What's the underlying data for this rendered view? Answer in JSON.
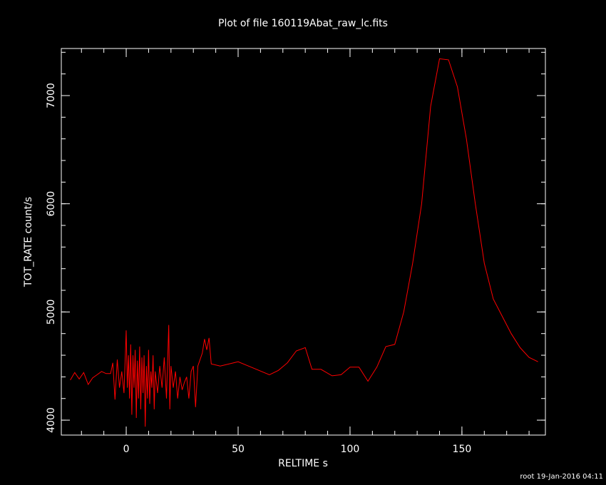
{
  "chart_data": {
    "type": "line",
    "title": "Plot of file 160119Abat_raw_lc.fits",
    "x_label": "RELTIME  s",
    "y_label": "TOT_RATE  count/s",
    "footer": "root 19-Jan-2016 04:11",
    "color": "#ff0000",
    "xlim": [
      -29,
      187.3
    ],
    "ylim": [
      3862,
      7435
    ],
    "xticks": [
      0,
      50,
      100,
      150
    ],
    "yticks": [
      4000,
      5000,
      6000,
      7000
    ],
    "x": [
      -25,
      -23,
      -21,
      -19,
      -17,
      -15,
      -13,
      -11,
      -9,
      -7,
      -6,
      -5,
      -4,
      -3,
      -2,
      -1,
      0,
      0.5,
      1,
      1.5,
      2,
      2.5,
      3,
      3.5,
      4,
      4.5,
      5,
      5.5,
      6,
      6.5,
      7,
      7.5,
      8,
      8.5,
      9,
      9.5,
      10,
      10.5,
      11,
      11.5,
      12,
      12.5,
      13,
      14,
      15,
      16,
      17,
      18,
      19,
      19.5,
      20,
      21,
      22,
      23,
      24,
      25,
      26,
      27,
      28,
      29,
      30,
      31,
      32,
      34,
      35,
      36,
      37,
      38,
      42,
      50,
      57,
      64,
      68,
      72,
      76,
      80,
      83,
      87,
      92,
      96,
      100,
      104,
      108,
      112,
      116,
      120,
      124,
      128,
      132,
      136,
      140,
      144,
      148,
      152,
      156,
      160,
      164,
      168,
      172,
      176,
      180,
      184
    ],
    "values": [
      4370,
      4440,
      4380,
      4440,
      4330,
      4390,
      4420,
      4450,
      4430,
      4430,
      4530,
      4190,
      4560,
      4300,
      4450,
      4250,
      4830,
      4300,
      4600,
      4200,
      4700,
      4050,
      4600,
      4300,
      4650,
      4020,
      4550,
      4200,
      4680,
      4100,
      4580,
      4250,
      4600,
      3940,
      4500,
      4200,
      4650,
      4150,
      4450,
      4300,
      4600,
      4100,
      4450,
      4250,
      4500,
      4300,
      4580,
      4200,
      4880,
      4100,
      4500,
      4300,
      4450,
      4200,
      4400,
      4280,
      4350,
      4400,
      4200,
      4450,
      4500,
      4120,
      4500,
      4620,
      4750,
      4650,
      4760,
      4520,
      4500,
      4540,
      4480,
      4420,
      4460,
      4530,
      4640,
      4670,
      4470,
      4470,
      4410,
      4420,
      4490,
      4490,
      4360,
      4490,
      4680,
      4700,
      5000,
      5450,
      6000,
      6900,
      7340,
      7330,
      7080,
      6600,
      6000,
      5450,
      5120,
      4960,
      4800,
      4670,
      4580,
      4540
    ]
  }
}
